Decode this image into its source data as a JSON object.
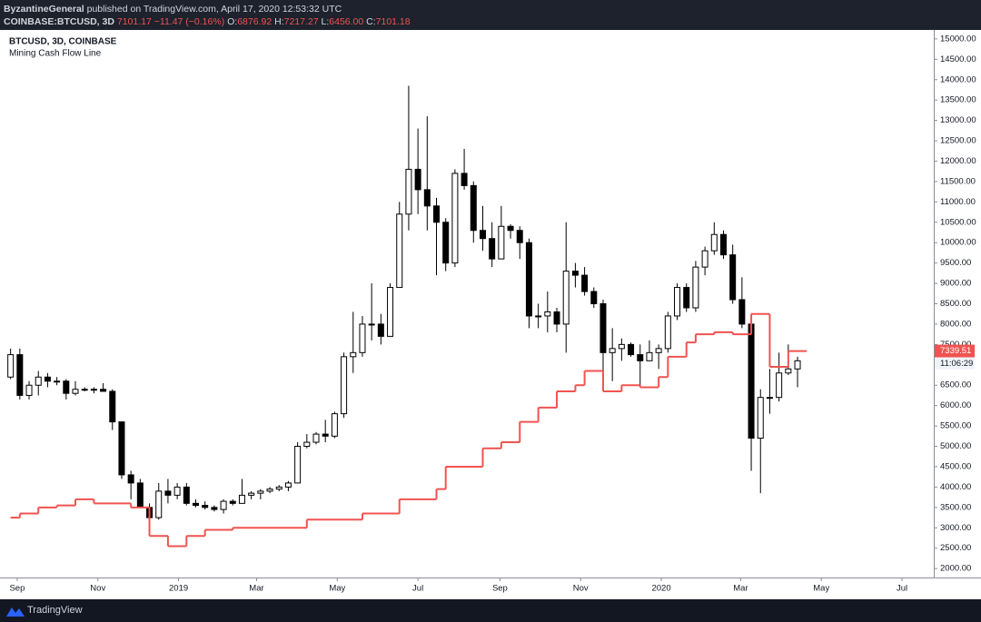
{
  "header": {
    "author": "ByzantineGeneral",
    "published": "published on TradingView.com, April 17, 2020 12:53:32 UTC",
    "symbol": "COINBASE:BTCUSD, 3D",
    "last": "7101.17",
    "change": "−11.47 (−0.16%)",
    "open_label": "O:",
    "open": "6876.92",
    "high_label": "H:",
    "high": "7217.27",
    "low_label": "L:",
    "low": "6456.00",
    "close_label": "C:",
    "close": "7101.18"
  },
  "chart_data": {
    "type": "candlestick",
    "title": "BTCUSD, 3D, COINBASE",
    "up_color": "#ffffff",
    "down_color": "#000000",
    "wick_color": "#000000",
    "x": [
      "2018-08-27",
      "2018-09-03",
      "2018-09-10",
      "2018-09-17",
      "2018-09-24",
      "2018-10-01",
      "2018-10-08",
      "2018-10-15",
      "2018-10-22",
      "2018-10-29",
      "2018-11-05",
      "2018-11-12",
      "2018-11-19",
      "2018-11-26",
      "2018-12-03",
      "2018-12-10",
      "2018-12-17",
      "2018-12-24",
      "2018-12-31",
      "2019-01-07",
      "2019-01-14",
      "2019-01-21",
      "2019-01-28",
      "2019-02-04",
      "2019-02-11",
      "2019-02-18",
      "2019-02-25",
      "2019-03-04",
      "2019-03-11",
      "2019-03-18",
      "2019-03-25",
      "2019-04-01",
      "2019-04-08",
      "2019-04-15",
      "2019-04-22",
      "2019-04-29",
      "2019-05-06",
      "2019-05-13",
      "2019-05-20",
      "2019-05-27",
      "2019-06-03",
      "2019-06-10",
      "2019-06-17",
      "2019-06-24",
      "2019-07-01",
      "2019-07-08",
      "2019-07-15",
      "2019-07-22",
      "2019-07-29",
      "2019-08-05",
      "2019-08-12",
      "2019-08-19",
      "2019-08-26",
      "2019-09-02",
      "2019-09-09",
      "2019-09-16",
      "2019-09-23",
      "2019-09-30",
      "2019-10-07",
      "2019-10-14",
      "2019-10-21",
      "2019-10-28",
      "2019-11-04",
      "2019-11-11",
      "2019-11-18",
      "2019-11-25",
      "2019-12-02",
      "2019-12-09",
      "2019-12-16",
      "2019-12-23",
      "2019-12-30",
      "2020-01-06",
      "2020-01-13",
      "2020-01-20",
      "2020-01-27",
      "2020-02-03",
      "2020-02-10",
      "2020-02-17",
      "2020-02-24",
      "2020-03-02",
      "2020-03-09",
      "2020-03-16",
      "2020-03-23",
      "2020-03-30",
      "2020-04-06",
      "2020-04-13"
    ],
    "open": [
      6700,
      7250,
      6250,
      6500,
      6700,
      6600,
      6600,
      6300,
      6400,
      6400,
      6400,
      6350,
      5600,
      4300,
      4100,
      3500,
      3250,
      3900,
      3800,
      4000,
      3600,
      3550,
      3500,
      3450,
      3650,
      3600,
      3800,
      3850,
      3900,
      3950,
      4000,
      4100,
      5000,
      5100,
      5300,
      5250,
      5800,
      7200,
      7300,
      8000,
      8000,
      7700,
      8900,
      10700,
      11800,
      11300,
      10900,
      10500,
      9500,
      11700,
      11400,
      10300,
      10100,
      9600,
      10400,
      10300,
      10000,
      8200,
      8200,
      8300,
      8000,
      9300,
      9200,
      8800,
      8500,
      7300,
      7400,
      7500,
      7250,
      7100,
      7300,
      7400,
      8200,
      8900,
      8400,
      9400,
      9800,
      10200,
      9700,
      8600,
      8000,
      5200,
      6200,
      6200,
      6800,
      6900
    ],
    "high": [
      7400,
      7400,
      6600,
      6850,
      6800,
      6700,
      6650,
      6600,
      6450,
      6450,
      6550,
      6400,
      5600,
      4400,
      4200,
      3600,
      4100,
      4200,
      4100,
      4100,
      3700,
      3650,
      3550,
      3700,
      3700,
      4200,
      3900,
      3950,
      4000,
      4050,
      4150,
      5100,
      5300,
      5350,
      5650,
      5850,
      7300,
      8300,
      8200,
      9000,
      8250,
      9000,
      11000,
      13850,
      12800,
      13100,
      11100,
      10600,
      11800,
      12300,
      11500,
      10900,
      10500,
      10900,
      10450,
      10400,
      10100,
      8500,
      8800,
      8400,
      10500,
      9500,
      9400,
      8900,
      8600,
      7900,
      7650,
      7550,
      7500,
      7600,
      7500,
      8300,
      9000,
      9000,
      9550,
      9900,
      10500,
      10300,
      9950,
      9150,
      8100,
      6400,
      6900,
      7300,
      7500,
      7200
    ],
    "low": [
      6650,
      6150,
      6150,
      6250,
      6450,
      6500,
      6150,
      6250,
      6350,
      6300,
      6350,
      5400,
      4200,
      3700,
      3500,
      3200,
      3200,
      3600,
      3700,
      3550,
      3500,
      3450,
      3400,
      3350,
      3550,
      3600,
      3700,
      3700,
      3850,
      3900,
      3900,
      4100,
      4950,
      5050,
      5100,
      5200,
      5700,
      6800,
      7200,
      7600,
      7500,
      7700,
      8900,
      10300,
      10700,
      10300,
      9200,
      9300,
      9400,
      11300,
      10000,
      9800,
      9400,
      9600,
      10100,
      9600,
      7900,
      7900,
      7800,
      7800,
      7300,
      8900,
      8700,
      8400,
      6800,
      6600,
      7100,
      7200,
      6450,
      7100,
      6900,
      7300,
      8100,
      8300,
      8300,
      9200,
      9700,
      9600,
      8500,
      7900,
      4400,
      3850,
      5800,
      6100,
      6750,
      6450
    ],
    "close": [
      7250,
      6250,
      6500,
      6700,
      6600,
      6600,
      6300,
      6400,
      6400,
      6400,
      6350,
      5600,
      4300,
      4100,
      3500,
      3250,
      3900,
      3800,
      4000,
      3600,
      3550,
      3500,
      3450,
      3650,
      3600,
      3800,
      3850,
      3900,
      3950,
      4000,
      4100,
      5000,
      5100,
      5300,
      5250,
      5800,
      7200,
      7300,
      8000,
      8000,
      7700,
      8900,
      10700,
      11800,
      11300,
      10900,
      10500,
      9500,
      11700,
      11400,
      10300,
      10100,
      9600,
      10400,
      10300,
      10000,
      8200,
      8200,
      8300,
      8000,
      9300,
      9200,
      8800,
      8500,
      7300,
      7400,
      7500,
      7250,
      7100,
      7300,
      7400,
      8200,
      8900,
      8400,
      9400,
      9800,
      10200,
      9700,
      8600,
      8000,
      5200,
      6200,
      6200,
      6800,
      6900,
      7100
    ],
    "overlay": {
      "name": "Mining Cash Flow Line",
      "color": "#f05350",
      "x": [
        "2018-08-27",
        "2018-09-03",
        "2018-09-17",
        "2018-10-01",
        "2018-10-15",
        "2018-10-29",
        "2018-11-26",
        "2018-12-10",
        "2018-12-24",
        "2019-01-07",
        "2019-01-21",
        "2019-02-11",
        "2019-04-08",
        "2019-05-20",
        "2019-06-17",
        "2019-07-15",
        "2019-07-22",
        "2019-08-19",
        "2019-09-02",
        "2019-09-16",
        "2019-09-30",
        "2019-10-14",
        "2019-10-28",
        "2019-11-04",
        "2019-11-18",
        "2019-12-02",
        "2019-12-16",
        "2019-12-30",
        "2020-01-06",
        "2020-01-20",
        "2020-01-27",
        "2020-02-10",
        "2020-02-24",
        "2020-03-09",
        "2020-03-23",
        "2020-04-06"
      ],
      "values": [
        3250,
        3350,
        3500,
        3550,
        3700,
        3600,
        3500,
        2800,
        2550,
        2800,
        2950,
        3000,
        3200,
        3350,
        3700,
        3950,
        4500,
        4950,
        5100,
        5600,
        5950,
        6350,
        6500,
        6850,
        6350,
        6500,
        6450,
        6700,
        7200,
        7550,
        7750,
        7800,
        7750,
        8250,
        6950,
        7339.51
      ]
    },
    "countdown": "11:06:29",
    "xlim": [
      "2018-08-19",
      "2020-07-25"
    ],
    "xticks": [
      {
        "value": "2018-09-01",
        "label": "Sep"
      },
      {
        "value": "2018-11-01",
        "label": "Nov"
      },
      {
        "value": "2019-01-01",
        "label": "2019"
      },
      {
        "value": "2019-03-01",
        "label": "Mar"
      },
      {
        "value": "2019-05-01",
        "label": "May"
      },
      {
        "value": "2019-07-01",
        "label": "Jul"
      },
      {
        "value": "2019-09-01",
        "label": "Sep"
      },
      {
        "value": "2019-11-01",
        "label": "Nov"
      },
      {
        "value": "2020-01-01",
        "label": "2020"
      },
      {
        "value": "2020-03-01",
        "label": "Mar"
      },
      {
        "value": "2020-05-01",
        "label": "May"
      },
      {
        "value": "2020-07-01",
        "label": "Jul"
      }
    ],
    "ylim": [
      1780,
      15220
    ],
    "yticks": [
      {
        "value": 2000,
        "label": "2000.00"
      },
      {
        "value": 2500,
        "label": "2500.00"
      },
      {
        "value": 3000,
        "label": "3000.00"
      },
      {
        "value": 3500,
        "label": "3500.00"
      },
      {
        "value": 4000,
        "label": "4000.00"
      },
      {
        "value": 4500,
        "label": "4500.00"
      },
      {
        "value": 5000,
        "label": "5000.00"
      },
      {
        "value": 5500,
        "label": "5500.00"
      },
      {
        "value": 6000,
        "label": "6000.00"
      },
      {
        "value": 6500,
        "label": "6500.00"
      },
      {
        "value": 7000,
        "label": "7000.00"
      },
      {
        "value": 7500,
        "label": "7500.00"
      },
      {
        "value": 8000,
        "label": "8000.00"
      },
      {
        "value": 8500,
        "label": "8500.00"
      },
      {
        "value": 9000,
        "label": "9000.00"
      },
      {
        "value": 9500,
        "label": "9500.00"
      },
      {
        "value": 10000,
        "label": "10000.00"
      },
      {
        "value": 10500,
        "label": "10500.00"
      },
      {
        "value": 11000,
        "label": "11000.00"
      },
      {
        "value": 11500,
        "label": "11500.00"
      },
      {
        "value": 12000,
        "label": "12000.00"
      },
      {
        "value": 12500,
        "label": "12500.00"
      },
      {
        "value": 13000,
        "label": "13000.00"
      },
      {
        "value": 13500,
        "label": "13500.00"
      },
      {
        "value": 14000,
        "label": "14000.00"
      },
      {
        "value": 14500,
        "label": "14500.00"
      },
      {
        "value": 15000,
        "label": "15000.00"
      }
    ],
    "grid": false
  },
  "footer": {
    "brand": "TradingView"
  }
}
